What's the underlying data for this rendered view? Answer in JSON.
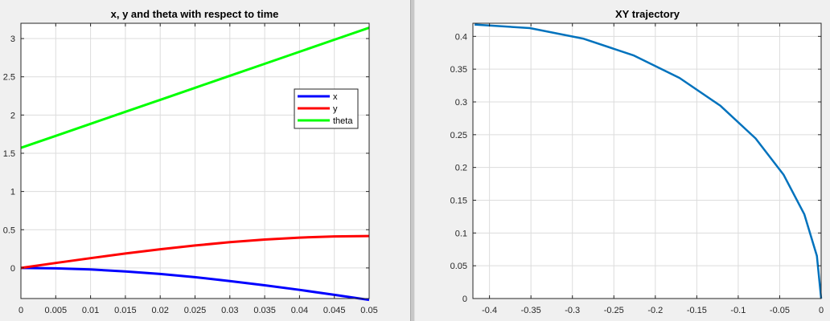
{
  "chart_data": [
    {
      "type": "line",
      "title": "x, y and theta with respect to time",
      "xlim": [
        0,
        0.05
      ],
      "ylim": [
        -0.4,
        3.2
      ],
      "xticks": [
        "0",
        "0.005",
        "0.01",
        "0.015",
        "0.02",
        "0.025",
        "0.03",
        "0.035",
        "0.04",
        "0.045",
        "0.05"
      ],
      "yticks": [
        "0",
        "0.5",
        "1",
        "1.5",
        "2",
        "2.5",
        "3"
      ],
      "grid": true,
      "legend_position": "top-right",
      "x": [
        0,
        0.005,
        0.01,
        0.015,
        0.02,
        0.025,
        0.03,
        0.035,
        0.04,
        0.045,
        0.05
      ],
      "series": [
        {
          "name": "x",
          "color": "#0000ff",
          "values": [
            0,
            -0.0051,
            -0.0203,
            -0.0452,
            -0.0791,
            -0.1213,
            -0.1708,
            -0.2265,
            -0.2871,
            -0.3513,
            -0.418
          ]
        },
        {
          "name": "y",
          "color": "#ff0000",
          "values": [
            0,
            0.065,
            0.1284,
            0.1887,
            0.2443,
            0.294,
            0.3366,
            0.3711,
            0.3966,
            0.4126,
            0.418
          ]
        },
        {
          "name": "theta",
          "color": "#00ff00",
          "values": [
            1.5708,
            1.7279,
            1.885,
            2.042,
            2.1991,
            2.3562,
            2.5133,
            2.6704,
            2.8274,
            2.9845,
            3.1416
          ]
        }
      ]
    },
    {
      "type": "line",
      "title": "XY trajectory",
      "xlim": [
        -0.42,
        0
      ],
      "ylim": [
        0,
        0.42
      ],
      "xticks": [
        "-0.4",
        "-0.35",
        "-0.3",
        "-0.25",
        "-0.2",
        "-0.15",
        "-0.1",
        "-0.05",
        "0"
      ],
      "yticks": [
        "0",
        "0.05",
        "0.1",
        "0.15",
        "0.2",
        "0.25",
        "0.3",
        "0.35",
        "0.4"
      ],
      "grid": true,
      "series": [
        {
          "color": "#0072bd",
          "x": [
            0,
            -0.0051,
            -0.0203,
            -0.0452,
            -0.0791,
            -0.1213,
            -0.1708,
            -0.2265,
            -0.2871,
            -0.3513,
            -0.418
          ],
          "y": [
            0,
            0.065,
            0.1284,
            0.1887,
            0.2443,
            0.294,
            0.3366,
            0.3711,
            0.3966,
            0.4126,
            0.418
          ]
        }
      ]
    }
  ]
}
